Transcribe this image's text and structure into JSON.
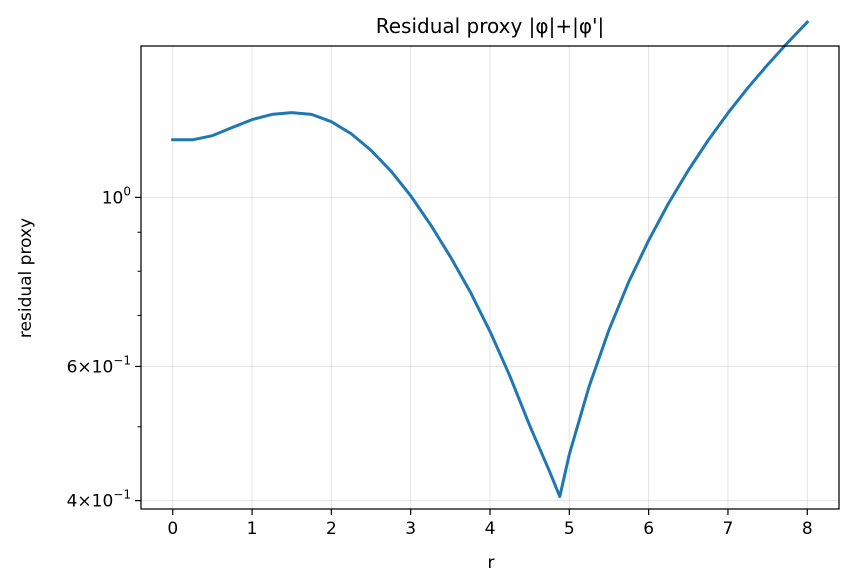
{
  "chart_data": {
    "type": "line",
    "title": "Residual proxy |φ|+|φ'|",
    "xlabel": "r",
    "ylabel": "residual proxy",
    "xlim": [
      -0.4,
      8.4
    ],
    "ylim": [
      0.39,
      1.58
    ],
    "yscale": "log",
    "grid": true,
    "x_ticks": [
      0,
      1,
      2,
      3,
      4,
      5,
      6,
      7,
      8
    ],
    "x_tick_labels": [
      "0",
      "1",
      "2",
      "3",
      "4",
      "5",
      "6",
      "7",
      "8"
    ],
    "y_major_ticks": [
      {
        "value": 0.4,
        "mantissa": "4",
        "exponent": "−1"
      },
      {
        "value": 0.6,
        "mantissa": "6",
        "exponent": "−1"
      },
      {
        "value": 1.0,
        "mantissa": "",
        "exponent": "0"
      }
    ],
    "y_minor_ticks": [
      0.5,
      0.7,
      0.8,
      0.9
    ],
    "series": [
      {
        "color": "#1f77b4",
        "x": [
          0.0,
          0.25,
          0.5,
          0.75,
          1.0,
          1.25,
          1.5,
          1.75,
          2.0,
          2.25,
          2.5,
          2.75,
          3.0,
          3.25,
          3.5,
          3.75,
          4.0,
          4.25,
          4.5,
          4.75,
          4.88,
          5.0,
          5.25,
          5.5,
          5.75,
          6.0,
          6.25,
          6.5,
          6.75,
          7.0,
          7.25,
          7.5,
          7.75,
          8.0
        ],
        "y": [
          1.19,
          1.19,
          1.205,
          1.235,
          1.265,
          1.285,
          1.292,
          1.285,
          1.257,
          1.212,
          1.153,
          1.083,
          1.005,
          0.921,
          0.836,
          0.752,
          0.667,
          0.583,
          0.502,
          0.437,
          0.405,
          0.46,
          0.565,
          0.67,
          0.775,
          0.878,
          0.982,
          1.085,
          1.188,
          1.29,
          1.392,
          1.493,
          1.595,
          1.698
        ]
      }
    ]
  }
}
